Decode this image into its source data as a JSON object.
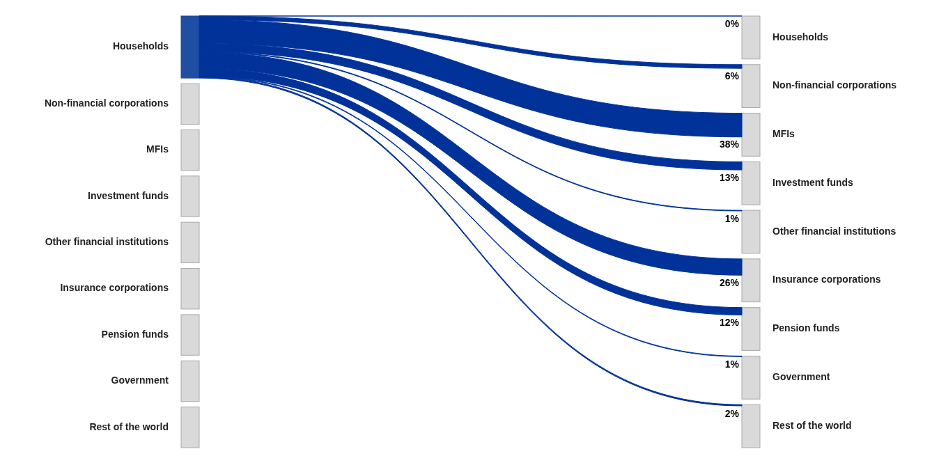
{
  "chart_data": {
    "type": "other",
    "y_categories": [
      "Households",
      "Non-financial corporations",
      "MFIs",
      "Investment funds",
      "Other financial institutions",
      "Insurance corporations",
      "Pension funds",
      "Government",
      "Rest of the world"
    ],
    "y2_categories": [
      "Households",
      "Non-financial corporations",
      "MFIs",
      "Investment funds",
      "Other financial institutions",
      "Insurance corporations",
      "Pension funds",
      "Government",
      "Rest of the world"
    ],
    "values": [
      0,
      6,
      38,
      13,
      1,
      26,
      12,
      1,
      2
    ],
    "value_labels": [
      "0%",
      "6%",
      "38%",
      "13%",
      "1%",
      "26%",
      "12%",
      "1%",
      "2%"
    ],
    "data_labels": true,
    "color": "#003299"
  }
}
